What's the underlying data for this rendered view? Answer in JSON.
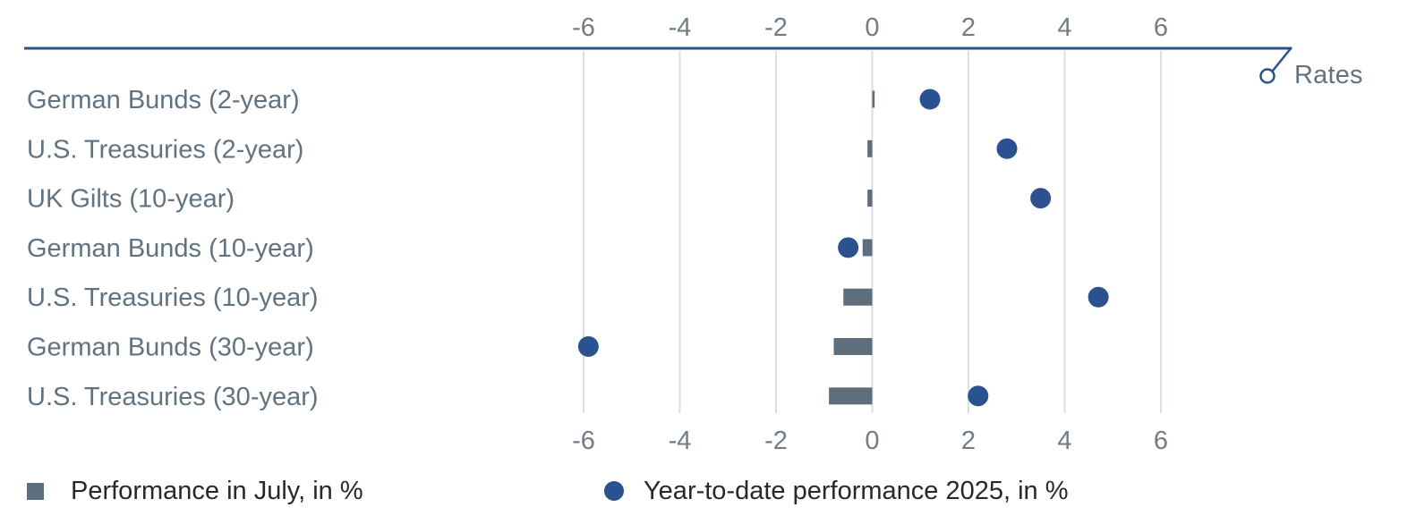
{
  "chart_data": {
    "type": "dumbbell (horizontal bars + dot markers)",
    "tag": "Rates",
    "unit": "%",
    "categories": [
      "German Bunds (2-year)",
      "U.S. Treasuries (2-year)",
      "UK Gilts (10-year)",
      "German Bunds (10-year)",
      "U.S. Treasuries (10-year)",
      "German Bunds (30-year)",
      "U.S. Treasuries (30-year)"
    ],
    "series": [
      {
        "name": "Performance in July, in %",
        "type": "bar",
        "color": "#5d6f7d",
        "values": [
          0.05,
          -0.1,
          -0.1,
          -0.2,
          -0.6,
          -0.8,
          -0.9
        ]
      },
      {
        "name": "Year-to-date performance 2025, in %",
        "type": "scatter",
        "color": "#2a5291",
        "values": [
          1.2,
          2.8,
          3.5,
          -0.5,
          4.7,
          -5.9,
          2.2
        ]
      }
    ],
    "x_axis": {
      "ticks": [
        -6,
        -4,
        -2,
        0,
        2,
        4,
        6
      ],
      "tick_label_position": "top and bottom",
      "gridlines": true
    }
  },
  "colors": {
    "accent_blue": "#2a5291",
    "bar_gray": "#5d6f7d",
    "category_label": "#5f7383",
    "tick_label": "#6e7d89",
    "gridline": "#d9dfe4",
    "legend_text": "#26292c"
  }
}
